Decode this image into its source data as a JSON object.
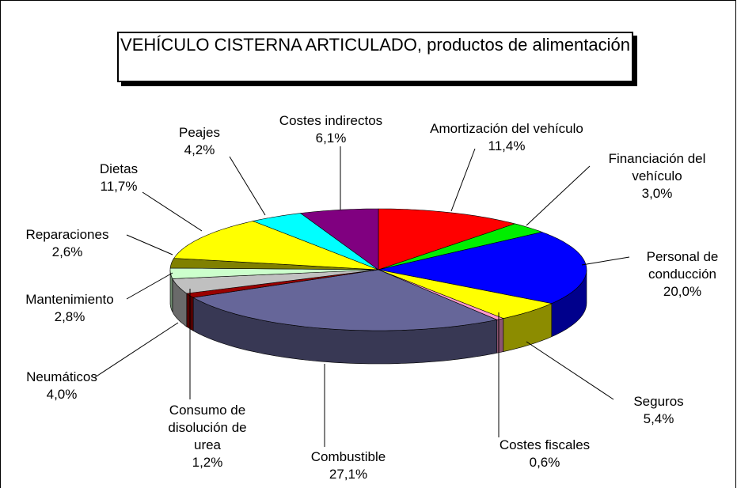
{
  "chart_data": {
    "type": "pie",
    "title": "VEHÍCULO CISTERNA ARTICULADO, productos de alimentación",
    "categories": [
      "Amortización del vehículo",
      "Financiación del vehículo",
      "Personal de conducción",
      "Seguros",
      "Costes fiscales",
      "Combustible",
      "Consumo de disolución de urea",
      "Neumáticos",
      "Mantenimiento",
      "Reparaciones",
      "Dietas",
      "Peajes",
      "Costes indirectos"
    ],
    "values": [
      11.4,
      3.0,
      20.0,
      5.4,
      0.6,
      27.1,
      1.2,
      4.0,
      2.8,
      2.6,
      11.7,
      4.2,
      6.1
    ],
    "value_labels": [
      "11,4%",
      "3,0%",
      "20,0%",
      "5,4%",
      "0,6%",
      "27,1%",
      "1,2%",
      "4,0%",
      "2,8%",
      "2,6%",
      "11,7%",
      "4,2%",
      "6,1%"
    ],
    "colors": [
      "#ff0000",
      "#00ee00",
      "#0000ff",
      "#ffff00",
      "#ff99cc",
      "#666699",
      "#990000",
      "#c0c0c0",
      "#ccffcc",
      "#808000",
      "#ffff00",
      "#00ffff",
      "#800080"
    ]
  }
}
